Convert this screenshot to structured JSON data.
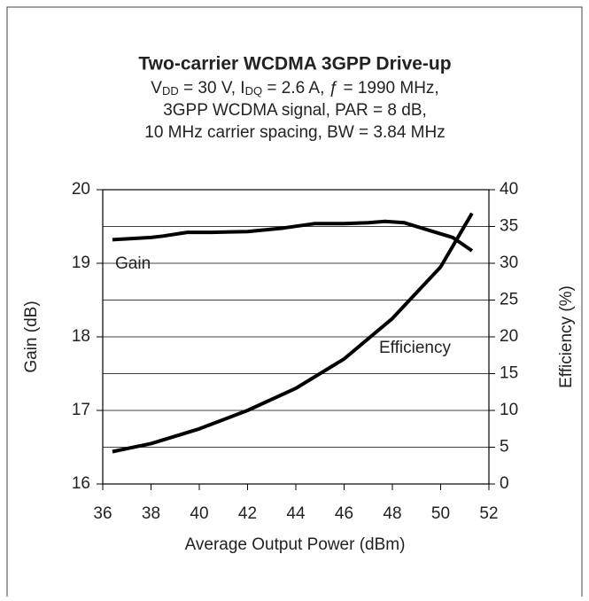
{
  "chart_data": {
    "type": "line",
    "title": "Two-carrier WCDMA 3GPP Drive-up",
    "subtitle": [
      [
        "V",
        "DD",
        " = 30 V, I",
        "DQ",
        " = 2.6 A, ƒ = 1990 MHz,"
      ],
      "3GPP WCDMA signal, PAR = 8 dB,",
      "10 MHz carrier spacing, BW = 3.84 MHz"
    ],
    "xlabel": "Average Output Power (dBm)",
    "ylabel": "Gain (dB)",
    "y2label": "Efficiency (%)",
    "xlim": [
      36,
      52
    ],
    "xticks": [
      36,
      38,
      40,
      42,
      44,
      46,
      48,
      50,
      52
    ],
    "ylim": [
      16,
      20
    ],
    "yticks": [
      16,
      17,
      18,
      19,
      20
    ],
    "y2lim": [
      0,
      40
    ],
    "y2ticks": [
      0,
      5,
      10,
      15,
      20,
      25,
      30,
      35,
      40
    ],
    "grid": true,
    "series": [
      {
        "name": "Gain",
        "color": "#000000",
        "x": [
          36.4,
          38,
          38.5,
          39.5,
          40.5,
          42,
          43.5,
          44.8,
          46,
          47,
          47.7,
          48.5,
          49.5,
          50.5,
          51.3
        ],
        "values": [
          19.32,
          19.35,
          19.37,
          19.42,
          19.42,
          19.43,
          19.48,
          19.54,
          19.54,
          19.55,
          19.57,
          19.55,
          19.45,
          19.35,
          19.17
        ]
      },
      {
        "name": "Efficiency",
        "color": "#000000",
        "axis": "y2",
        "x": [
          36.4,
          38,
          40,
          42,
          44,
          46,
          48,
          50,
          51.3
        ],
        "values": [
          4.4,
          5.5,
          7.5,
          10,
          13,
          17,
          22.5,
          29.5,
          36.8
        ]
      }
    ]
  }
}
